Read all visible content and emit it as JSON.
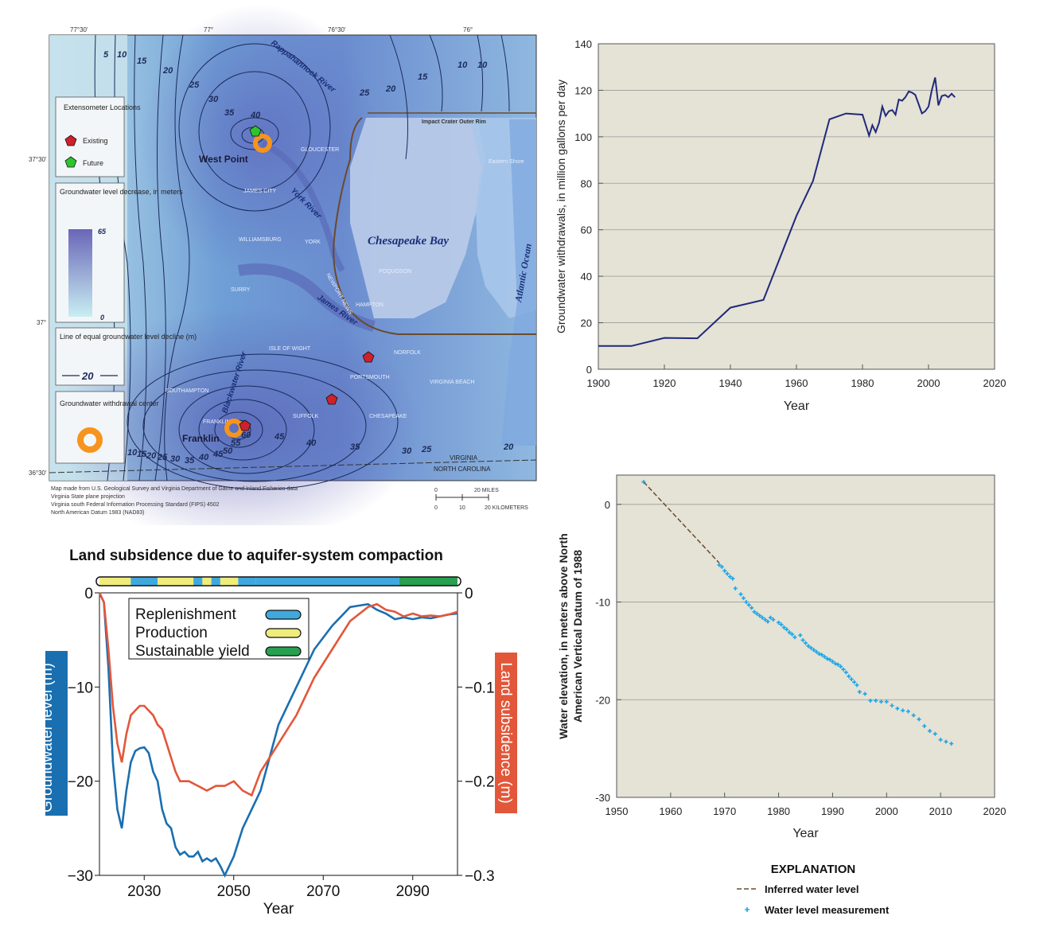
{
  "map": {
    "lon_ticks": [
      "77°30'",
      "77°",
      "76°30'",
      "76°"
    ],
    "lat_ticks": [
      "37°30'",
      "37°",
      "36°30'"
    ],
    "legend": {
      "extensometer_title": "Extensometer Locations",
      "existing": "Existing",
      "future": "Future",
      "gradient_title": "Groundwater level decrease, in meters",
      "gradient_max": "65",
      "gradient_min": "0",
      "contour_title": "Line of equal groundwater level decline (m)",
      "contour_sample": "20",
      "center_title": "Groundwater withdrawal center"
    },
    "places": {
      "west_point": "West Point",
      "franklin": "Franklin",
      "franklin_small": "FRANKLIN",
      "gloucester": "GLOUCESTER",
      "james_city": "JAMES CITY",
      "williamsburg": "WILLIAMSBURG",
      "york": "YORK",
      "surry": "SURRY",
      "isle_of_wight": "ISLE OF WIGHT",
      "southampton": "SOUTHAMPTON",
      "suffolk": "SUFFOLK",
      "portsmouth": "PORTSMOUTH",
      "norfolk": "NORFOLK",
      "chesapeake": "CHESAPEAKE",
      "virginia_beach": "VIRGINIA BEACH",
      "poquoson": "POQUOSON",
      "hampton": "HAMPTON",
      "newport_news": "NEWPORT NEWS",
      "eastern_shore": "Eastern Shore",
      "chesapeake_bay": "Chesapeake Bay",
      "atlantic_ocean": "Atlantic Ocean",
      "rappahannock": "Rappahannock River",
      "york_river": "York River",
      "james_river": "James River",
      "blackwater": "Blackwater River",
      "impact_crater": "Impact Crater Outer Rim",
      "virginia": "VIRGINIA",
      "north_carolina": "NORTH CAROLINA"
    },
    "contour_labels": [
      "5",
      "10",
      "15",
      "20",
      "25",
      "30",
      "35",
      "40",
      "45",
      "50",
      "55",
      "60",
      "65"
    ],
    "source_notes": [
      "Map made from U.S. Geological Survey and Virginia Department of Game and Inland Fisheries data",
      "Virginia State plane projection",
      "Virginia south Federal Information Processing Standard (FIPS) 4502",
      "North American Datum 1983 (NAD83)"
    ],
    "scale": {
      "miles_0": "0",
      "miles_20": "20 MILES",
      "km_0": "0",
      "km_10": "10",
      "km_20": "20 KILOMETERS"
    },
    "colors": {
      "existing": "#d0202a",
      "future": "#2ec42e",
      "center": "#f7941d",
      "contour": "#1a2a5a"
    }
  },
  "chart_data": [
    {
      "type": "line",
      "xlabel": "Year",
      "ylabel": "Groundwater withdrawals, in million gallons per day",
      "xlim": [
        1900,
        2020
      ],
      "ylim": [
        0,
        140
      ],
      "x_ticks": [
        1900,
        1920,
        1940,
        1960,
        1980,
        2000,
        2020
      ],
      "y_ticks": [
        0,
        20,
        40,
        60,
        80,
        100,
        120,
        140
      ],
      "grid": true,
      "color": "#1f2a7a",
      "background": "#e5e2d6",
      "series": [
        {
          "x": [
            1900,
            1910,
            1920,
            1930,
            1940,
            1950,
            1960,
            1965,
            1970,
            1975,
            1980,
            1982,
            1983,
            1984,
            1985,
            1986,
            1987,
            1988,
            1989,
            1990,
            1991,
            1992,
            1993,
            1994,
            1995,
            1996,
            1997,
            1998,
            1999,
            2000,
            2001,
            2002,
            2003,
            2004,
            2005,
            2006,
            2007,
            2008
          ],
          "y": [
            10,
            10,
            13.5,
            13.3,
            26.5,
            29.8,
            66,
            81,
            107.5,
            110,
            109.5,
            100.5,
            105,
            102,
            106,
            113,
            109,
            111,
            111.5,
            109.5,
            116,
            115.5,
            117,
            119.5,
            119,
            118,
            114,
            110,
            111,
            113,
            120,
            125.5,
            113.5,
            117.5,
            118,
            117,
            118.5,
            117
          ]
        }
      ]
    },
    {
      "type": "line",
      "title": "Land subsidence due to aquifer-system compaction",
      "xlabel": "Year",
      "ylabel_left": "Groundwater level (m)",
      "ylabel_right": "Land subsidence (m)",
      "xlim": [
        2020,
        2100
      ],
      "ylim_left": [
        -30,
        0
      ],
      "ylim_right": [
        -0.3,
        0
      ],
      "x_ticks": [
        2030,
        2050,
        2070,
        2090
      ],
      "y_ticks_left": [
        "−30",
        "−20",
        "−10",
        "0"
      ],
      "y_ticks_right": [
        "−0.3",
        "−0.2",
        "−0.1",
        "0"
      ],
      "legend": [
        "Replenishment",
        "Production",
        "Sustainable yield"
      ],
      "legend_colors": [
        "#3fa8dc",
        "#f0ec7c",
        "#27a050"
      ],
      "phase_bar": [
        {
          "phase": "Production",
          "from": 2020,
          "to": 2027
        },
        {
          "phase": "Replenishment",
          "from": 2027,
          "to": 2033
        },
        {
          "phase": "Production",
          "from": 2033,
          "to": 2041
        },
        {
          "phase": "Replenishment",
          "from": 2041,
          "to": 2043
        },
        {
          "phase": "Production",
          "from": 2043,
          "to": 2045
        },
        {
          "phase": "Replenishment",
          "from": 2045,
          "to": 2047
        },
        {
          "phase": "Production",
          "from": 2047,
          "to": 2051
        },
        {
          "phase": "Replenishment",
          "from": 2051,
          "to": 2055
        },
        {
          "phase": "Replenishment",
          "from": 2055,
          "to": 2087
        },
        {
          "phase": "Sustainable yield",
          "from": 2087,
          "to": 2100
        }
      ],
      "series": [
        {
          "name": "Groundwater level (m)",
          "color": "#1a6fb0",
          "x": [
            2020,
            2021,
            2022,
            2023,
            2024,
            2025,
            2026,
            2027,
            2028,
            2029,
            2030,
            2031,
            2032,
            2033,
            2034,
            2035,
            2036,
            2037,
            2038,
            2039,
            2040,
            2041,
            2042,
            2043,
            2044,
            2045,
            2046,
            2047,
            2048,
            2050,
            2052,
            2054,
            2056,
            2058,
            2060,
            2064,
            2068,
            2072,
            2076,
            2080,
            2082,
            2084,
            2086,
            2088,
            2090,
            2092,
            2094,
            2096,
            2098,
            2100
          ],
          "y": [
            0,
            -1,
            -8,
            -18,
            -23,
            -25,
            -21,
            -18,
            -16.8,
            -16.5,
            -16.4,
            -17,
            -19,
            -20,
            -23,
            -24.5,
            -25,
            -27,
            -27.8,
            -27.5,
            -28,
            -28,
            -27.5,
            -28.5,
            -28.2,
            -28.5,
            -28.2,
            -29,
            -30,
            -28,
            -25,
            -23,
            -21,
            -17.5,
            -14,
            -10,
            -6,
            -3.5,
            -1.5,
            -1.2,
            -1.8,
            -2.2,
            -2.8,
            -2.6,
            -2.8,
            -2.6,
            -2.7,
            -2.5,
            -2.3,
            -2.2
          ]
        },
        {
          "name": "Land subsidence (m)",
          "color": "#e2573a",
          "x": [
            2020,
            2021,
            2022,
            2023,
            2024,
            2025,
            2026,
            2027,
            2028,
            2029,
            2030,
            2031,
            2032,
            2033,
            2034,
            2035,
            2036,
            2037,
            2038,
            2040,
            2042,
            2044,
            2046,
            2048,
            2050,
            2052,
            2054,
            2056,
            2058,
            2060,
            2064,
            2068,
            2072,
            2076,
            2080,
            2082,
            2084,
            2086,
            2088,
            2090,
            2092,
            2094,
            2096,
            2098,
            2100
          ],
          "y": [
            0,
            -0.01,
            -0.06,
            -0.12,
            -0.16,
            -0.18,
            -0.15,
            -0.13,
            -0.125,
            -0.12,
            -0.12,
            -0.125,
            -0.13,
            -0.14,
            -0.145,
            -0.16,
            -0.175,
            -0.19,
            -0.2,
            -0.2,
            -0.205,
            -0.21,
            -0.205,
            -0.205,
            -0.2,
            -0.21,
            -0.215,
            -0.19,
            -0.175,
            -0.16,
            -0.13,
            -0.09,
            -0.06,
            -0.03,
            -0.015,
            -0.012,
            -0.018,
            -0.02,
            -0.025,
            -0.022,
            -0.025,
            -0.024,
            -0.025,
            -0.023,
            -0.02
          ]
        }
      ]
    },
    {
      "type": "scatter",
      "xlabel": "Year",
      "ylabel": "Water elevation, in meters above North American Vertical Datum of 1988",
      "xlim": [
        1950,
        2020
      ],
      "ylim": [
        -30,
        0
      ],
      "y_axis_top": 3,
      "x_ticks": [
        1950,
        1960,
        1970,
        1980,
        1990,
        2000,
        2010,
        2020
      ],
      "y_ticks": [
        0,
        -10,
        -20,
        -30
      ],
      "grid": true,
      "background": "#e5e2d6",
      "legend_title": "EXPLANATION",
      "series": [
        {
          "name": "Inferred water level",
          "color": "#6b4a2b",
          "x": [
            1955,
            1969
          ],
          "y": [
            2.3,
            -6
          ]
        },
        {
          "name": "Water level measurement",
          "color": "#1aa7e8",
          "x": [
            1955,
            1969,
            1969.5,
            1970,
            1970.5,
            1971,
            1971.5,
            1972,
            1973,
            1973.5,
            1974,
            1974.5,
            1975,
            1975.5,
            1976,
            1976.5,
            1977,
            1977.5,
            1978,
            1978.5,
            1979,
            1980,
            1980.5,
            1981,
            1981.5,
            1982,
            1982.5,
            1983,
            1984,
            1984.5,
            1985,
            1985.5,
            1986,
            1986.5,
            1987,
            1987.5,
            1988,
            1988.5,
            1989,
            1989.5,
            1990,
            1990.5,
            1991,
            1991.5,
            1992,
            1992.5,
            1993,
            1993.5,
            1994,
            1994.5,
            1995,
            1996,
            1997,
            1998,
            1999,
            2000,
            2001,
            2002,
            2003,
            2004,
            2005,
            2006,
            2007,
            2008,
            2009,
            2010,
            2011,
            2012
          ],
          "y": [
            2.3,
            -6.2,
            -6.4,
            -6.8,
            -7.1,
            -7.4,
            -7.6,
            -8.6,
            -9.2,
            -9.6,
            -10,
            -10.3,
            -10.6,
            -11,
            -11.2,
            -11.4,
            -11.6,
            -11.8,
            -12,
            -11.6,
            -11.8,
            -12.1,
            -12.3,
            -12.6,
            -12.8,
            -13.1,
            -13.3,
            -13.6,
            -13.4,
            -13.9,
            -14.2,
            -14.5,
            -14.7,
            -14.9,
            -15.1,
            -15.3,
            -15.4,
            -15.6,
            -15.8,
            -15.9,
            -16.1,
            -16.3,
            -16.4,
            -16.6,
            -16.9,
            -17.2,
            -17.6,
            -17.9,
            -18.2,
            -18.5,
            -19.2,
            -19.4,
            -20.1,
            -20.1,
            -20.2,
            -20.2,
            -20.6,
            -20.9,
            -21.1,
            -21.2,
            -21.6,
            -22,
            -22.7,
            -23.2,
            -23.5,
            -24.1,
            -24.3,
            -24.5
          ]
        }
      ]
    }
  ]
}
